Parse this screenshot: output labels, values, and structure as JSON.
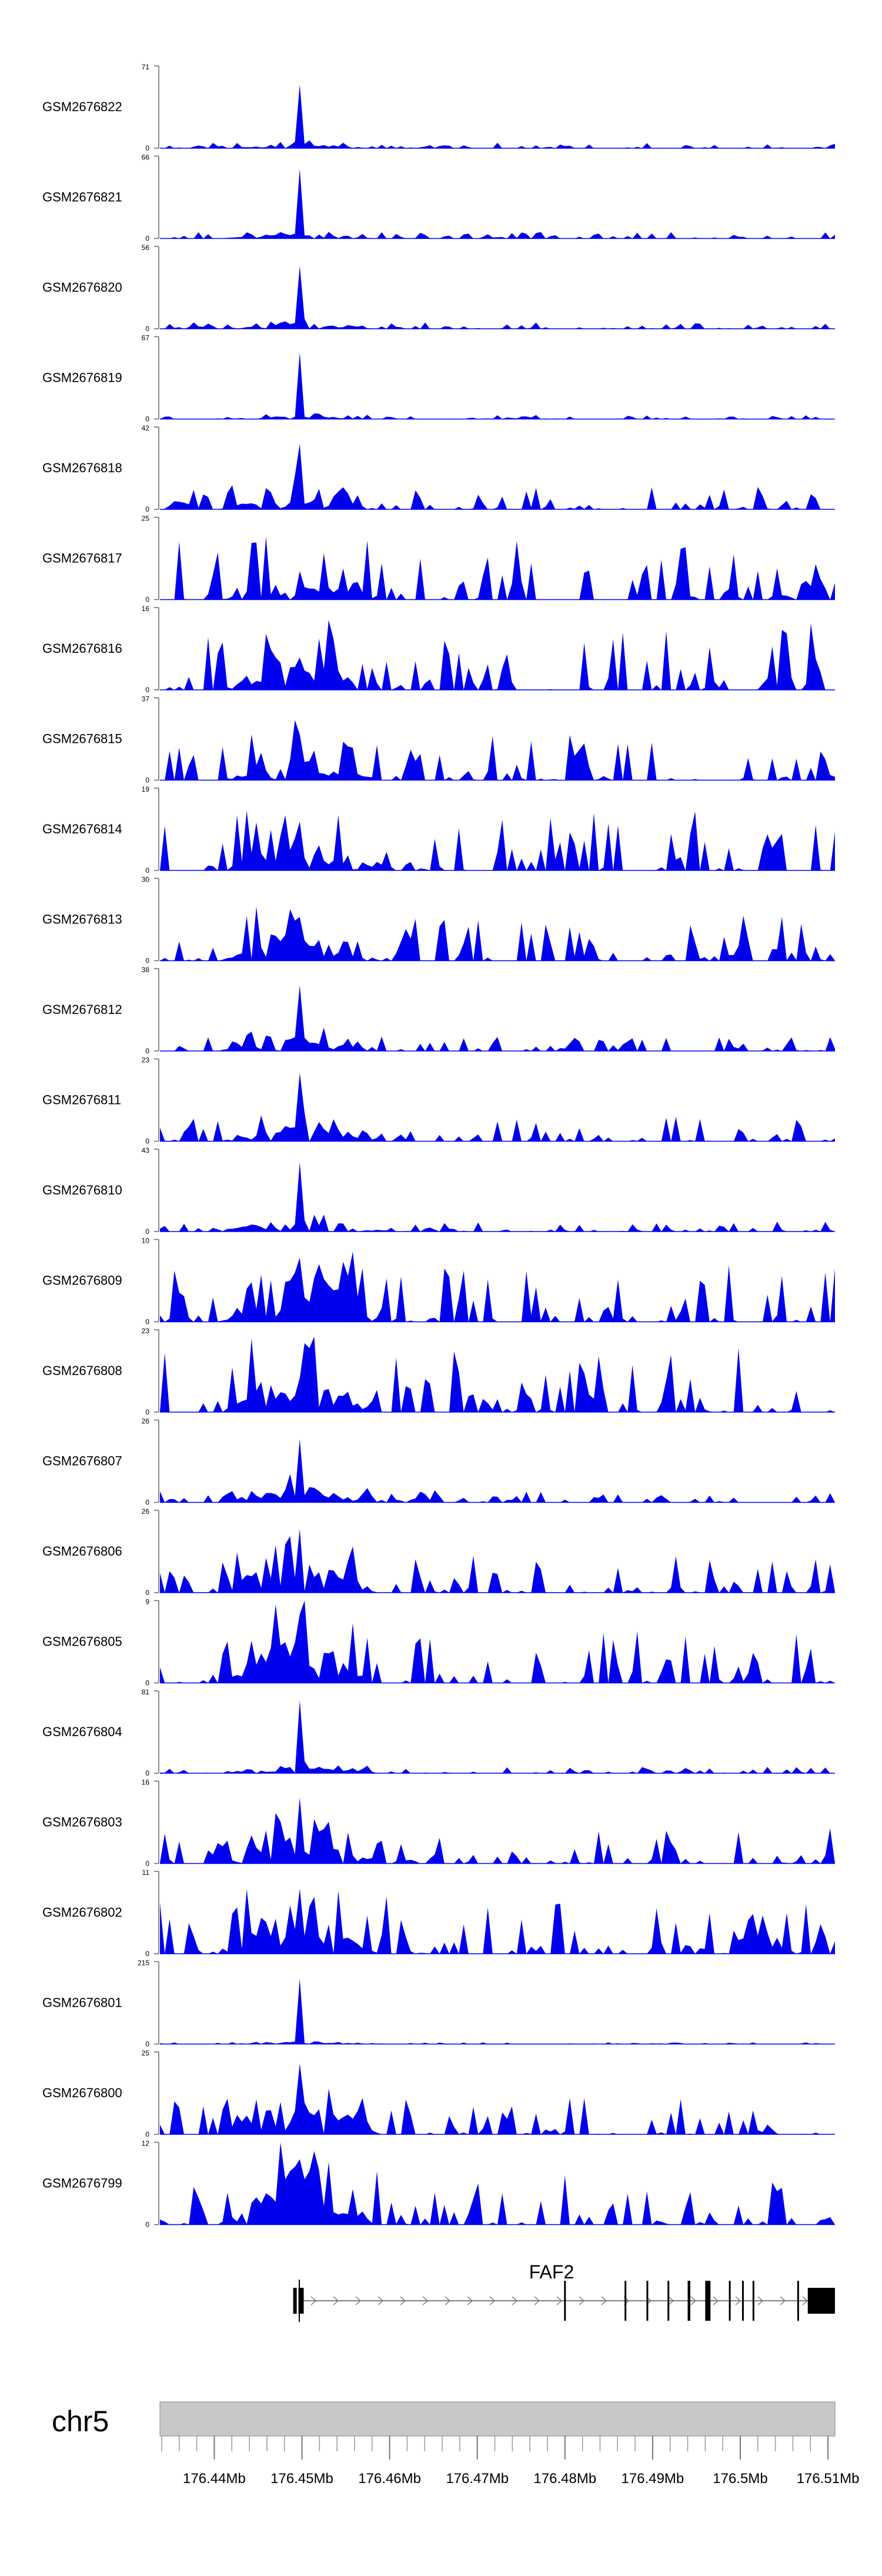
{
  "chart_data": {
    "type": "area",
    "title": "",
    "xlabel": "",
    "ylabel": "",
    "chromosome": "chr5",
    "xlim": [
      176.4338,
      176.5108
    ],
    "x_tick_labels": [
      "176.44Mb",
      "176.45Mb",
      "176.46Mb",
      "176.47Mb",
      "176.48Mb",
      "176.49Mb",
      "176.5Mb",
      "176.51Mb"
    ],
    "x_ticks": [
      176.44,
      176.45,
      176.46,
      176.47,
      176.48,
      176.49,
      176.5,
      176.51
    ],
    "bins": 140,
    "fill_color": "#0000ee",
    "tracks": [
      {
        "name": "GSM2676822",
        "ymax": 71,
        "peak_height": 71,
        "noise": 0.07,
        "flank": 0.06
      },
      {
        "name": "GSM2676821",
        "ymax": 66,
        "peak_height": 66,
        "noise": 0.08,
        "flank": 0.07
      },
      {
        "name": "GSM2676820",
        "ymax": 56,
        "peak_height": 56,
        "noise": 0.08,
        "flank": 0.08
      },
      {
        "name": "GSM2676819",
        "ymax": 67,
        "peak_height": 67,
        "noise": 0.05,
        "flank": 0.05
      },
      {
        "name": "GSM2676818",
        "ymax": 42,
        "peak_height": 42,
        "noise": 0.28,
        "flank": 0.2
      },
      {
        "name": "GSM2676817",
        "ymax": 25,
        "peak_height": 10,
        "noise": 0.75,
        "flank": 0.3
      },
      {
        "name": "GSM2676816",
        "ymax": 16,
        "peak_height": 8,
        "noise": 0.85,
        "flank": 0.4
      },
      {
        "name": "GSM2676815",
        "ymax": 37,
        "peak_height": 25,
        "noise": 0.55,
        "flank": 0.3
      },
      {
        "name": "GSM2676814",
        "ymax": 19,
        "peak_height": 14,
        "noise": 0.75,
        "flank": 0.5
      },
      {
        "name": "GSM2676813",
        "ymax": 30,
        "peak_height": 20,
        "noise": 0.55,
        "flank": 0.4
      },
      {
        "name": "GSM2676812",
        "ymax": 38,
        "peak_height": 38,
        "noise": 0.18,
        "flank": 0.2
      },
      {
        "name": "GSM2676811",
        "ymax": 23,
        "peak_height": 23,
        "noise": 0.3,
        "flank": 0.35
      },
      {
        "name": "GSM2676810",
        "ymax": 43,
        "peak_height": 43,
        "noise": 0.12,
        "flank": 0.2
      },
      {
        "name": "GSM2676809",
        "ymax": 10,
        "peak_height": 10,
        "noise": 0.75,
        "flank": 0.8
      },
      {
        "name": "GSM2676808",
        "ymax": 23,
        "peak_height": 12,
        "noise": 0.8,
        "flank": 0.5
      },
      {
        "name": "GSM2676807",
        "ymax": 26,
        "peak_height": 26,
        "noise": 0.15,
        "flank": 0.25
      },
      {
        "name": "GSM2676806",
        "ymax": 26,
        "peak_height": 26,
        "noise": 0.45,
        "flank": 0.6
      },
      {
        "name": "GSM2676805",
        "ymax": 9,
        "peak_height": 9,
        "noise": 0.7,
        "flank": 0.7
      },
      {
        "name": "GSM2676804",
        "ymax": 81,
        "peak_height": 81,
        "noise": 0.08,
        "flank": 0.12
      },
      {
        "name": "GSM2676803",
        "ymax": 16,
        "peak_height": 16,
        "noise": 0.45,
        "flank": 0.55
      },
      {
        "name": "GSM2676802",
        "ymax": 11,
        "peak_height": 11,
        "noise": 0.7,
        "flank": 0.6
      },
      {
        "name": "GSM2676801",
        "ymax": 215,
        "peak_height": 215,
        "noise": 0.02,
        "flank": 0.03
      },
      {
        "name": "GSM2676800",
        "ymax": 25,
        "peak_height": 25,
        "noise": 0.45,
        "flank": 0.6
      },
      {
        "name": "GSM2676799",
        "ymax": 12,
        "peak_height": 12,
        "noise": 0.65,
        "flank": 0.75
      }
    ],
    "peak_position": 176.4497,
    "gene": {
      "name": "FAF2",
      "start": 176.4497,
      "end": 176.5108,
      "strand": "+",
      "exons": [
        {
          "start": 176.4496,
          "end": 176.4502,
          "thick": true
        },
        {
          "start": 176.4799,
          "end": 176.4801,
          "thick": false
        },
        {
          "start": 176.4868,
          "end": 176.487,
          "thick": false
        },
        {
          "start": 176.4893,
          "end": 176.4895,
          "thick": false
        },
        {
          "start": 176.4917,
          "end": 176.4919,
          "thick": false
        },
        {
          "start": 176.494,
          "end": 176.4943,
          "thick": false
        },
        {
          "start": 176.496,
          "end": 176.4966,
          "thick": false
        },
        {
          "start": 176.4987,
          "end": 176.4989,
          "thick": false
        },
        {
          "start": 176.5002,
          "end": 176.5004,
          "thick": false
        },
        {
          "start": 176.5014,
          "end": 176.5016,
          "thick": false
        },
        {
          "start": 176.5065,
          "end": 176.5067,
          "thick": false
        },
        {
          "start": 176.5077,
          "end": 176.5108,
          "thick": true
        }
      ],
      "extra_left_exon": {
        "start": 176.449,
        "end": 176.4494
      }
    }
  }
}
